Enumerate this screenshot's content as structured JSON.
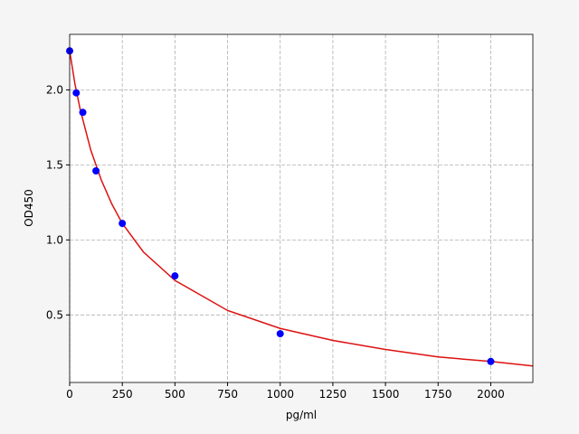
{
  "chart_data": {
    "type": "scatter",
    "x_label": "pg/ml",
    "y_label": "OD450",
    "xlim": [
      0,
      2200
    ],
    "ylim": [
      0.05,
      2.37
    ],
    "xticks": [
      0,
      250,
      500,
      750,
      1000,
      1250,
      1500,
      1750,
      2000
    ],
    "yticks": [
      0.5,
      {
        "value": 1,
        "label": "1.0"
      },
      1.5,
      {
        "value": 2,
        "label": "2.0"
      }
    ],
    "grid": true,
    "series": [
      {
        "kind": "line",
        "color": "#dd1111",
        "x": [
          0,
          25,
          50,
          100,
          150,
          200,
          250,
          350,
          500,
          750,
          1000,
          1250,
          1500,
          1750,
          2000,
          2200
        ],
        "values": [
          2.26,
          2.04,
          1.87,
          1.6,
          1.4,
          1.24,
          1.11,
          0.92,
          0.73,
          0.53,
          0.41,
          0.33,
          0.27,
          0.22,
          0.19,
          0.16
        ]
      },
      {
        "kind": "scatter",
        "color": "#0000ff",
        "x": [
          0,
          31.25,
          62.5,
          125,
          250,
          500,
          1000,
          2000
        ],
        "values": [
          2.26,
          1.98,
          1.85,
          1.46,
          1.11,
          0.76,
          0.375,
          0.19
        ]
      }
    ]
  }
}
